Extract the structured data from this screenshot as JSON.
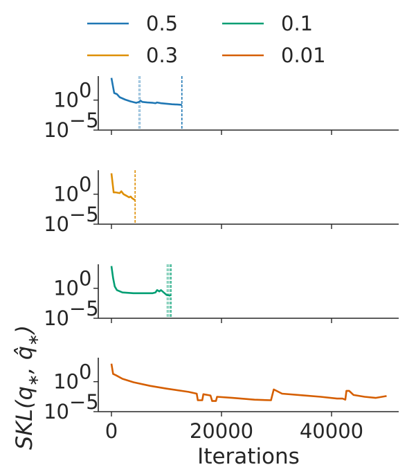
{
  "chart_data": {
    "type": "line",
    "xlabel": "Iterations",
    "ylabel": "SKL(q∗, q̂∗)",
    "xlim": [
      -3000,
      51000
    ],
    "x_ticks": [
      0,
      20000,
      40000
    ],
    "y_scale": "log",
    "ylim": [
      1e-05,
      10000
    ],
    "y_ticks": [
      {
        "value": 1,
        "label": "10",
        "exp": "0"
      },
      {
        "value": 1e-05,
        "label": "10",
        "exp": "−5"
      }
    ],
    "legend": {
      "placement": "top",
      "columns": 2
    },
    "series": [
      {
        "name": "0.5",
        "color": "#1f77b4",
        "points": [
          [
            0,
            5000
          ],
          [
            500,
            15
          ],
          [
            1000,
            10
          ],
          [
            1500,
            3
          ],
          [
            2500,
            1.2
          ],
          [
            3500,
            0.6
          ],
          [
            4500,
            0.35
          ],
          [
            5000,
            0.5
          ],
          [
            5300,
            0.8
          ],
          [
            5600,
            0.5
          ],
          [
            6500,
            0.4
          ],
          [
            7500,
            0.35
          ],
          [
            8000,
            0.3
          ],
          [
            8300,
            0.4
          ],
          [
            9000,
            0.3
          ],
          [
            10000,
            0.25
          ],
          [
            11000,
            0.2
          ],
          [
            12000,
            0.18
          ],
          [
            12800,
            0.16
          ]
        ],
        "stops": [
          {
            "x": 5000,
            "style": "light"
          },
          {
            "x": 5200,
            "style": "light"
          },
          {
            "x": 12800,
            "style": "dark"
          }
        ]
      },
      {
        "name": "0.3",
        "color": "#de8f05",
        "points": [
          [
            0,
            3000
          ],
          [
            400,
            2
          ],
          [
            800,
            2
          ],
          [
            1500,
            1.5
          ],
          [
            1800,
            3
          ],
          [
            2200,
            1
          ],
          [
            2800,
            0.5
          ],
          [
            3200,
            0.3
          ],
          [
            3500,
            0.4
          ],
          [
            3800,
            0.2
          ],
          [
            4300,
            0.1
          ]
        ],
        "stops": [
          {
            "x": 4300,
            "style": "dark"
          }
        ]
      },
      {
        "name": "0.1",
        "color": "#029e73",
        "points": [
          [
            0,
            5000
          ],
          [
            300,
            50
          ],
          [
            600,
            2
          ],
          [
            1000,
            0.5
          ],
          [
            2000,
            0.2
          ],
          [
            4000,
            0.15
          ],
          [
            6000,
            0.15
          ],
          [
            7500,
            0.15
          ],
          [
            8000,
            0.2
          ],
          [
            8300,
            0.5
          ],
          [
            8700,
            0.3
          ],
          [
            9000,
            0.5
          ],
          [
            9500,
            0.2
          ],
          [
            10000,
            0.08
          ],
          [
            10700,
            0.06
          ]
        ],
        "stops": [
          {
            "x": 10100,
            "style": "light"
          },
          {
            "x": 10300,
            "style": "light"
          },
          {
            "x": 10500,
            "style": "light"
          },
          {
            "x": 10800,
            "style": "dark"
          }
        ]
      },
      {
        "name": "0.01",
        "color": "#d55e00",
        "points": [
          [
            0,
            1000
          ],
          [
            300,
            20
          ],
          [
            800,
            12
          ],
          [
            2000,
            3
          ],
          [
            4000,
            0.8
          ],
          [
            7000,
            0.2
          ],
          [
            10000,
            0.07
          ],
          [
            14000,
            0.02
          ],
          [
            15500,
            0.01
          ],
          [
            15700,
            0.0008
          ],
          [
            16500,
            0.0008
          ],
          [
            16700,
            0.008
          ],
          [
            18000,
            0.005
          ],
          [
            18300,
            0.0006
          ],
          [
            19000,
            0.0006
          ],
          [
            19200,
            0.003
          ],
          [
            22000,
            0.002
          ],
          [
            26000,
            0.001
          ],
          [
            29000,
            0.0008
          ],
          [
            29500,
            0.05
          ],
          [
            31000,
            0.01
          ],
          [
            35000,
            0.005
          ],
          [
            38000,
            0.003
          ],
          [
            41000,
            0.0015
          ],
          [
            42000,
            0.0015
          ],
          [
            42500,
            0.001
          ],
          [
            42700,
            0.03
          ],
          [
            43200,
            0.03
          ],
          [
            44000,
            0.006
          ],
          [
            46000,
            0.003
          ],
          [
            48000,
            0.002
          ],
          [
            50000,
            0.004
          ]
        ],
        "stops": []
      }
    ]
  }
}
